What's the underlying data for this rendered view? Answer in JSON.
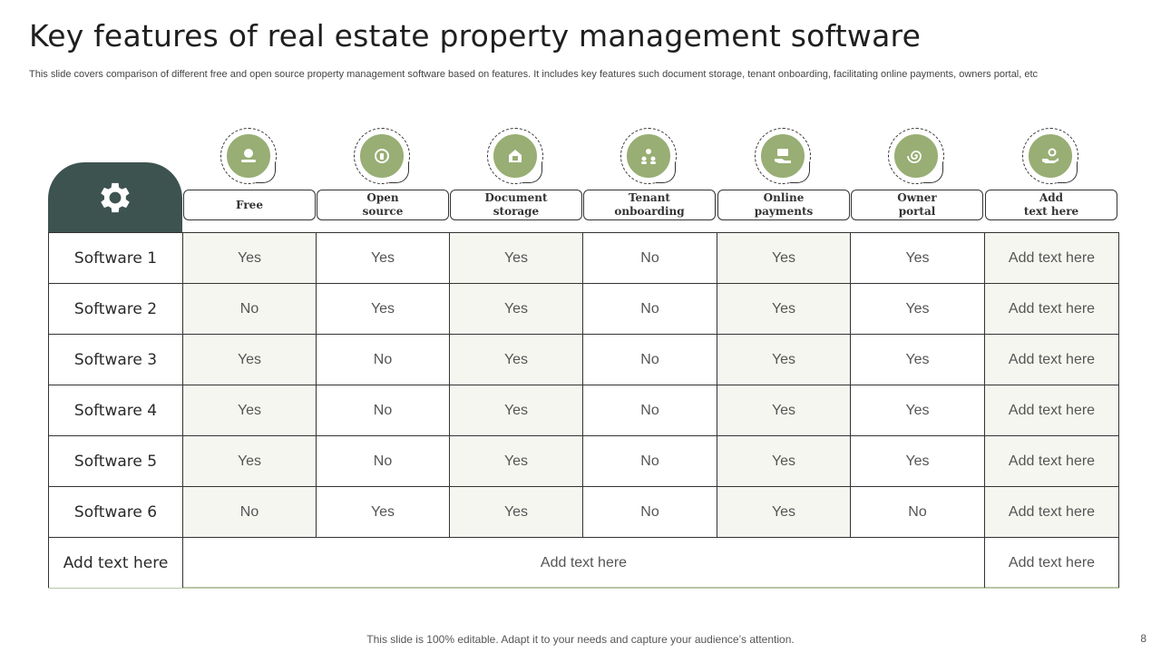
{
  "title": "Key features of real estate property management software",
  "subtitle": "This slide covers comparison of different free and open source property management software based on features. It includes key features such document storage, tenant onboarding, facilitating online payments, owners portal, etc",
  "colors": {
    "accent": "#98ae74",
    "dark": "#3d5350"
  },
  "features": [
    {
      "label": "Free",
      "icon": "money-icon"
    },
    {
      "label": "Open\nsource",
      "icon": "unlock-icon"
    },
    {
      "label": "Document\nstorage",
      "icon": "document-storage-icon"
    },
    {
      "label": "Tenant\nonboarding",
      "icon": "team-settings-icon"
    },
    {
      "label": "Online\npayments",
      "icon": "payment-icon"
    },
    {
      "label": "Owner\nportal",
      "icon": "spiral-icon"
    },
    {
      "label": "Add\ntext here",
      "icon": "hand-gear-icon"
    }
  ],
  "rows": [
    {
      "name": "Software 1",
      "values": [
        "Yes",
        "Yes",
        "Yes",
        "No",
        "Yes",
        "Yes",
        "Add text here"
      ]
    },
    {
      "name": "Software 2",
      "values": [
        "No",
        "Yes",
        "Yes",
        "No",
        "Yes",
        "Yes",
        "Add text here"
      ]
    },
    {
      "name": "Software 3",
      "values": [
        "Yes",
        "No",
        "Yes",
        "No",
        "Yes",
        "Yes",
        "Add text here"
      ]
    },
    {
      "name": "Software 4",
      "values": [
        "Yes",
        "No",
        "Yes",
        "No",
        "Yes",
        "Yes",
        "Add text here"
      ]
    },
    {
      "name": "Software 5",
      "values": [
        "Yes",
        "No",
        "Yes",
        "No",
        "Yes",
        "Yes",
        "Add text here"
      ]
    },
    {
      "name": "Software 6",
      "values": [
        "No",
        "Yes",
        "Yes",
        "No",
        "Yes",
        "No",
        "Add text here"
      ]
    }
  ],
  "last_row": {
    "name": "Add text here",
    "merged": "Add text here",
    "last": "Add text here"
  },
  "footer": "This slide is 100% editable. Adapt it to your needs and capture your audience’s attention.",
  "page_number": "8"
}
